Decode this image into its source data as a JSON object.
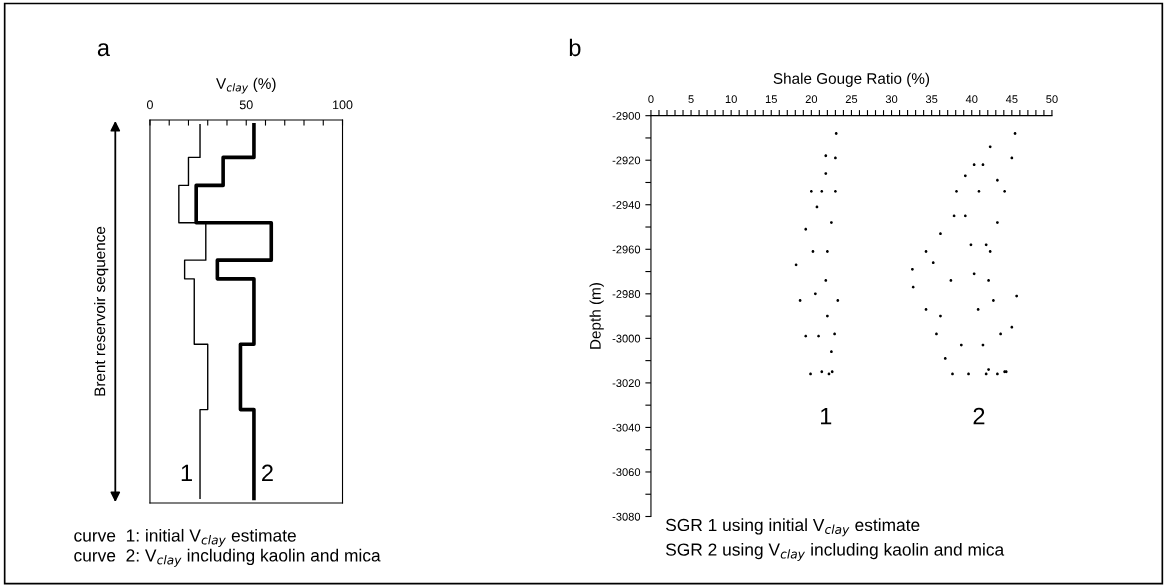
{
  "chart_data": [
    {
      "type": "step",
      "title": "a",
      "orientation": "horizontal",
      "xlabel": "V$_{clay}$ (%)",
      "ylabel": "Brent reservoir sequence",
      "categories": [
        null,
        null,
        null,
        null,
        null,
        null,
        null,
        null,
        null,
        null,
        null,
        null,
        null,
        null,
        null,
        null,
        null,
        null,
        null,
        null,
        null,
        null,
        null,
        null,
        null,
        null,
        null,
        null,
        null,
        null,
        null,
        null,
        null,
        null,
        null,
        null,
        null,
        null,
        null,
        null,
        null
      ],
      "series": [
        {
          "name": "1",
          "color": "#000000",
          "values": [
            26,
            26,
            26,
            26,
            20,
            20,
            20,
            15,
            15,
            15,
            15,
            29,
            29,
            29,
            29,
            18,
            18,
            23,
            23,
            23,
            23,
            23,
            23,
            23,
            30,
            30,
            30,
            30,
            30,
            30,
            30,
            26,
            26,
            26,
            26,
            26,
            26,
            26,
            26,
            26,
            26
          ]
        },
        {
          "name": "2",
          "color": "#000000",
          "values": [
            54,
            54,
            54,
            54,
            38,
            38,
            38,
            24,
            24,
            24,
            24,
            63,
            63,
            63,
            63,
            35,
            35,
            54,
            54,
            54,
            54,
            54,
            54,
            54,
            47,
            47,
            47,
            47,
            47,
            47,
            47,
            54,
            54,
            54,
            54,
            54,
            54,
            54,
            54,
            54,
            54
          ]
        }
      ],
      "xlim": [
        0,
        100
      ],
      "xticks": [
        0,
        {
          "value": 10,
          "label": null
        },
        {
          "value": 20,
          "label": null
        },
        {
          "value": 30,
          "label": null
        },
        {
          "value": 40,
          "label": null
        },
        50,
        {
          "value": 60,
          "label": null
        },
        {
          "value": 70,
          "label": null
        },
        {
          "value": 80,
          "label": null
        },
        {
          "value": 90,
          "label": null
        },
        100
      ],
      "marker": "none",
      "line_style": "solid",
      "grid": false,
      "legend": false,
      "tick_labels": "x",
      "annotations": [
        "curve  1: initial V$_{clay}$ estimate",
        "curve  2: V$_{clay}$ including kaolin and mica"
      ]
    },
    {
      "type": "scatter",
      "title": "b",
      "xlabel": "Shale Gouge Ratio (%)",
      "ylabel": "Depth (m)",
      "series": [
        {
          "name": "1",
          "color": "#000000",
          "x": [
            23.1,
            21.8,
            20.0,
            19.3,
            18.1,
            18.6,
            19.3,
            19.9,
            23.0,
            23.0,
            22.5,
            22.0,
            21.8,
            22.0,
            22.5,
            22.2,
            23.3,
            22.9,
            22.6,
            20.7,
            20.2,
            20.5,
            20.9,
            21.3,
            21.8,
            21.3
          ],
          "values": [
            -2908,
            -2918,
            -2934,
            -2951,
            -2967,
            -2983,
            -2999,
            -3016,
            -2919,
            -2934,
            -2948,
            -2961,
            -2974,
            -2990,
            -3006,
            -3016,
            -2983,
            -2998,
            -3015,
            -2941,
            -2961,
            -2980,
            -2999,
            -3015,
            -2926,
            -2934
          ]
        },
        {
          "name": "2",
          "color": "#000000",
          "x": [
            45.4,
            45.0,
            44.1,
            43.2,
            42.3,
            42.1,
            42.7,
            43.6,
            44.3,
            45.6,
            45.0,
            44.1,
            42.3,
            41.4,
            40.3,
            39.2,
            38.1,
            37.8,
            36.1,
            34.3,
            32.6,
            32.7,
            34.3,
            35.6,
            36.7,
            37.6,
            39.6,
            41.8,
            43.2,
            39.2,
            39.9,
            40.3,
            40.8,
            41.4,
            42.1,
            40.9,
            41.8,
            37.4,
            36.1,
            38.7,
            35.2,
            43.2
          ],
          "values": [
            -2908,
            -2919,
            -2934,
            -2948,
            -2961,
            -2974,
            -2983,
            -2998,
            -3015,
            -2981,
            -2995,
            -3015,
            -2914,
            -2922,
            -2922,
            -2927,
            -2934,
            -2945,
            -2953,
            -2961,
            -2969,
            -2977,
            -2987,
            -2998,
            -3009,
            -3016,
            -3016,
            -3016,
            -3016,
            -2945,
            -2958,
            -2971,
            -2987,
            -3003,
            -3014,
            -2934,
            -2958,
            -2974,
            -2990,
            -3003,
            -2966,
            -2929
          ]
        }
      ],
      "xlim": [
        0,
        50
      ],
      "xticks": [
        0,
        {
          "value": 1,
          "label": null
        },
        {
          "value": 2,
          "label": null
        },
        {
          "value": 3,
          "label": null
        },
        {
          "value": 4,
          "label": null
        },
        5,
        {
          "value": 6,
          "label": null
        },
        {
          "value": 7,
          "label": null
        },
        {
          "value": 8,
          "label": null
        },
        {
          "value": 9,
          "label": null
        },
        10,
        {
          "value": 11,
          "label": null
        },
        {
          "value": 12,
          "label": null
        },
        {
          "value": 13,
          "label": null
        },
        {
          "value": 14,
          "label": null
        },
        15,
        {
          "value": 16,
          "label": null
        },
        {
          "value": 17,
          "label": null
        },
        {
          "value": 18,
          "label": null
        },
        {
          "value": 19,
          "label": null
        },
        20,
        {
          "value": 21,
          "label": null
        },
        {
          "value": 22,
          "label": null
        },
        {
          "value": 23,
          "label": null
        },
        {
          "value": 24,
          "label": null
        },
        25,
        {
          "value": 26,
          "label": null
        },
        {
          "value": 27,
          "label": null
        },
        {
          "value": 28,
          "label": null
        },
        {
          "value": 29,
          "label": null
        },
        30,
        {
          "value": 31,
          "label": null
        },
        {
          "value": 32,
          "label": null
        },
        {
          "value": 33,
          "label": null
        },
        {
          "value": 34,
          "label": null
        },
        35,
        {
          "value": 36,
          "label": null
        },
        {
          "value": 37,
          "label": null
        },
        {
          "value": 38,
          "label": null
        },
        {
          "value": 39,
          "label": null
        },
        40,
        {
          "value": 41,
          "label": null
        },
        {
          "value": 42,
          "label": null
        },
        {
          "value": 43,
          "label": null
        },
        {
          "value": 44,
          "label": null
        },
        45,
        {
          "value": 46,
          "label": null
        },
        {
          "value": 47,
          "label": null
        },
        {
          "value": 48,
          "label": null
        },
        {
          "value": 49,
          "label": null
        },
        50
      ],
      "ylim": [
        -3080,
        -2900
      ],
      "yticks": [
        -2900,
        {
          "value": -2910,
          "label": null
        },
        -2920,
        {
          "value": -2930,
          "label": null
        },
        -2940,
        {
          "value": -2950,
          "label": null
        },
        -2960,
        {
          "value": -2970,
          "label": null
        },
        -2980,
        {
          "value": -2990,
          "label": null
        },
        -3000,
        {
          "value": -3010,
          "label": null
        },
        -3020,
        {
          "value": -3030,
          "label": null
        },
        -3040,
        {
          "value": -3050,
          "label": null
        },
        -3060,
        {
          "value": -3070,
          "label": null
        },
        -3080
      ],
      "marker": "circle",
      "grid": false,
      "legend": false,
      "annotations": [
        "SGR 1 using initial V$_{clay}$ estimate",
        "SGR 2 using V$_{clay}$ including kaolin and mica"
      ]
    }
  ]
}
